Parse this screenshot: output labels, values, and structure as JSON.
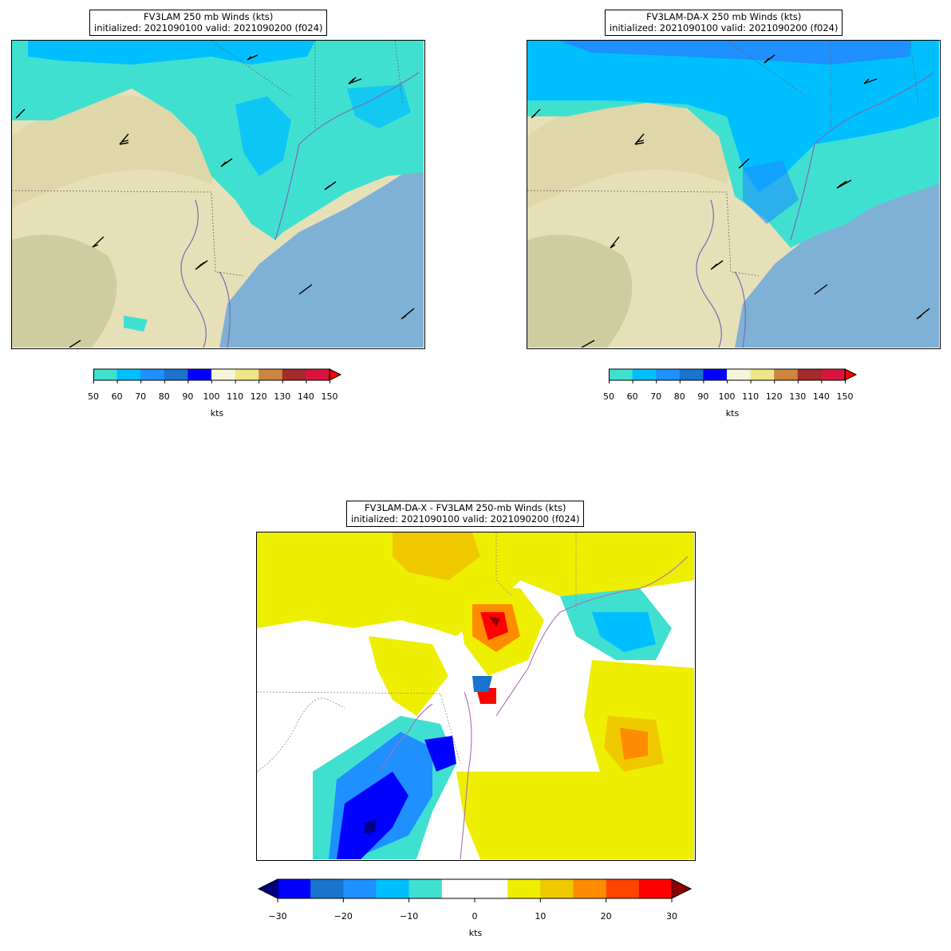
{
  "panels": [
    {
      "title_line1": "FV3LAM 250 mb Winds (kts)",
      "title_line2": "initialized: 2021090100 valid: 2021090200 (f024)"
    },
    {
      "title_line1": "FV3LAM-DA-X 250 mb Winds (kts)",
      "title_line2": "initialized: 2021090100 valid: 2021090200 (f024)"
    },
    {
      "title_line1": "FV3LAM-DA-X - FV3LAM 250-mb Winds (kts)",
      "title_line2": "initialized: 2021090100 valid: 2021090200 (f024)"
    }
  ],
  "wind_colorbar": {
    "ticks": [
      "50",
      "60",
      "70",
      "80",
      "90",
      "100",
      "110",
      "120",
      "130",
      "140",
      "150"
    ],
    "colors": [
      "#40e0d0",
      "#00bfff",
      "#1e90ff",
      "#1874cd",
      "#0000ff",
      "#f5f5dc",
      "#eee685",
      "#cd853f",
      "#a52a2a",
      "#dc143c"
    ],
    "extend_color": "#ff0000",
    "label": "kts"
  },
  "diff_colorbar": {
    "ticks": [
      "−30",
      "−20",
      "−10",
      "0",
      "10",
      "20",
      "30"
    ],
    "colors": [
      "#0000ff",
      "#1874cd",
      "#1e90ff",
      "#00bfff",
      "#40e0d0",
      "#ffffff",
      "#ffffff",
      "#eeee00",
      "#eec900",
      "#ff8c00",
      "#ff4500",
      "#ff0000"
    ],
    "extend_low": "#000080",
    "extend_high": "#8b0000",
    "label": "kts"
  },
  "colors": {
    "land": "#e6e0b8",
    "ocean": "#7fb0d6",
    "coast": "#7a6ab5",
    "diff_coast": "#b06ab5"
  }
}
